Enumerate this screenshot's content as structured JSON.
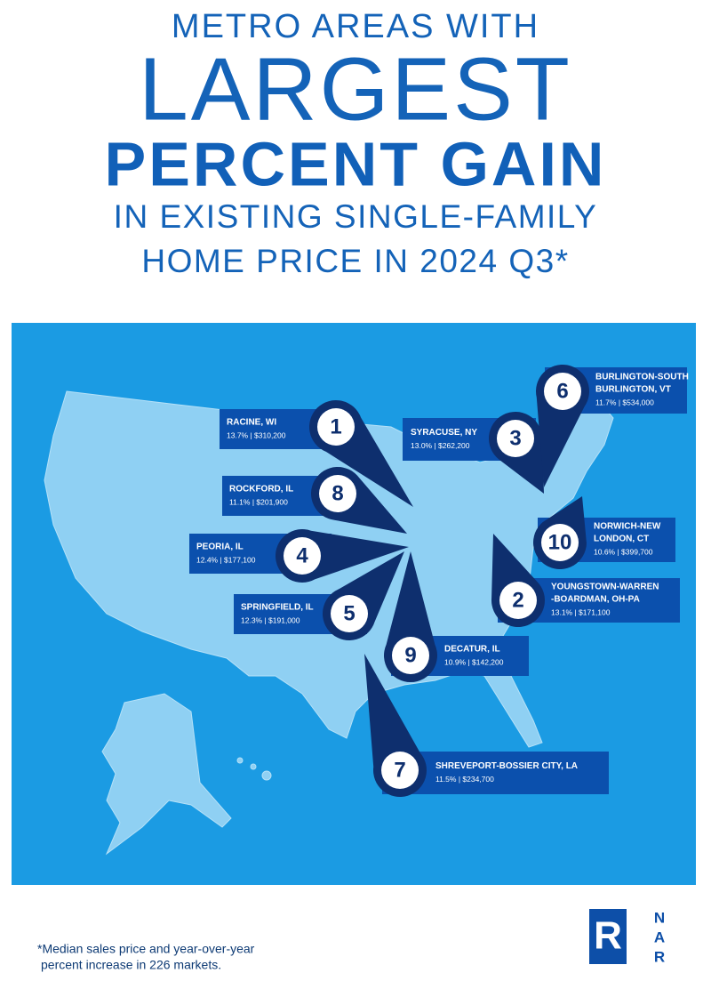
{
  "header": {
    "line1": "METRO AREAS WITH",
    "line2": "LARGEST",
    "line3": "PERCENT GAIN",
    "line4": "IN EXISTING SINGLE-FAMILY",
    "line5": "HOME PRICE IN 2024 Q3*"
  },
  "markers": [
    {
      "rank": "1",
      "name": [
        "RACINE, WI"
      ],
      "stats": "13.7% | $310,200"
    },
    {
      "rank": "2",
      "name": [
        "YOUNGSTOWN-WARREN",
        "-BOARDMAN, OH-PA"
      ],
      "stats": "13.1% | $171,100"
    },
    {
      "rank": "3",
      "name": [
        "SYRACUSE, NY"
      ],
      "stats": "13.0% | $262,200"
    },
    {
      "rank": "4",
      "name": [
        "PEORIA, IL"
      ],
      "stats": "12.4% | $177,100"
    },
    {
      "rank": "5",
      "name": [
        "SPRINGFIELD, IL"
      ],
      "stats": "12.3% | $191,000"
    },
    {
      "rank": "6",
      "name": [
        "BURLINGTON-SOUTH",
        "BURLINGTON, VT"
      ],
      "stats": "11.7% | $534,000"
    },
    {
      "rank": "7",
      "name": [
        "SHREVEPORT-BOSSIER CITY, LA"
      ],
      "stats": "11.5% | $234,700"
    },
    {
      "rank": "8",
      "name": [
        "ROCKFORD, IL"
      ],
      "stats": "11.1% | $201,900"
    },
    {
      "rank": "9",
      "name": [
        "DECATUR, IL"
      ],
      "stats": "10.9% | $142,200"
    },
    {
      "rank": "10",
      "name": [
        "NORWICH-NEW",
        "LONDON, CT"
      ],
      "stats": "10.6% | $399,700"
    }
  ],
  "footnote": {
    "line1": "*Median sales price and year-over-year",
    "line2": "percent increase in 226 markets."
  },
  "logo": {
    "mark": "R",
    "letters": [
      "N",
      "A",
      "R"
    ]
  }
}
